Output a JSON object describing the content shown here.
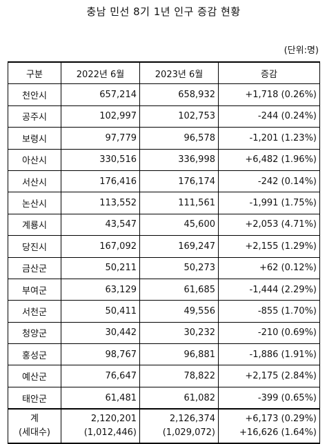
{
  "title": "충남 민선 8기 1년 인구 증감 현황",
  "unit": "(단위:명)",
  "headers": [
    "구분",
    "2022년 6월",
    "2023년 6월",
    "증감"
  ],
  "rows": [
    {
      "region": "천안시",
      "y2022": "657,214",
      "y2023": "658,932",
      "change": "+1,718  (0.26%)"
    },
    {
      "region": "공주시",
      "y2022": "102,997",
      "y2023": "102,753",
      "change": "-244  (0.24%)"
    },
    {
      "region": "보령시",
      "y2022": "97,779",
      "y2023": "96,578",
      "change": "-1,201  (1.23%)"
    },
    {
      "region": "아산시",
      "y2022": "330,516",
      "y2023": "336,998",
      "change": "+6,482  (1.96%)"
    },
    {
      "region": "서산시",
      "y2022": "176,416",
      "y2023": "176,174",
      "change": "-242  (0.14%)"
    },
    {
      "region": "논산시",
      "y2022": "113,552",
      "y2023": "111,561",
      "change": "-1,991  (1.75%)"
    },
    {
      "region": "계룡시",
      "y2022": "43,547",
      "y2023": "45,600",
      "change": "+2,053  (4.71%)"
    },
    {
      "region": "당진시",
      "y2022": "167,092",
      "y2023": "169,247",
      "change": "+2,155  (1.29%)"
    },
    {
      "region": "금산군",
      "y2022": "50,211",
      "y2023": "50,273",
      "change": "+62  (0.12%)"
    },
    {
      "region": "부여군",
      "y2022": "63,129",
      "y2023": "61,685",
      "change": "-1,444  (2.29%)"
    },
    {
      "region": "서천군",
      "y2022": "50,411",
      "y2023": "49,556",
      "change": "-855  (1.70%)"
    },
    {
      "region": "청양군",
      "y2022": "30,442",
      "y2023": "30,232",
      "change": "-210  (0.69%)"
    },
    {
      "region": "홍성군",
      "y2022": "98,767",
      "y2023": "96,881",
      "change": "-1,886  (1.91%)"
    },
    {
      "region": "예산군",
      "y2022": "76,647",
      "y2023": "78,822",
      "change": "+2,175  (2.84%)"
    },
    {
      "region": "태안군",
      "y2022": "61,481",
      "y2023": "61,082",
      "change": "-399  (0.65%)"
    }
  ],
  "total": {
    "region_line1": "계",
    "region_line2": "(세대수)",
    "y2022_line1": "2,120,201",
    "y2022_line2": "(1,012,446)",
    "y2023_line1": "2,126,374",
    "y2023_line2": "(1,029,072)",
    "change_line1": "+6,173  (0.29%)",
    "change_line2": "+16,626  (1.64%)"
  }
}
